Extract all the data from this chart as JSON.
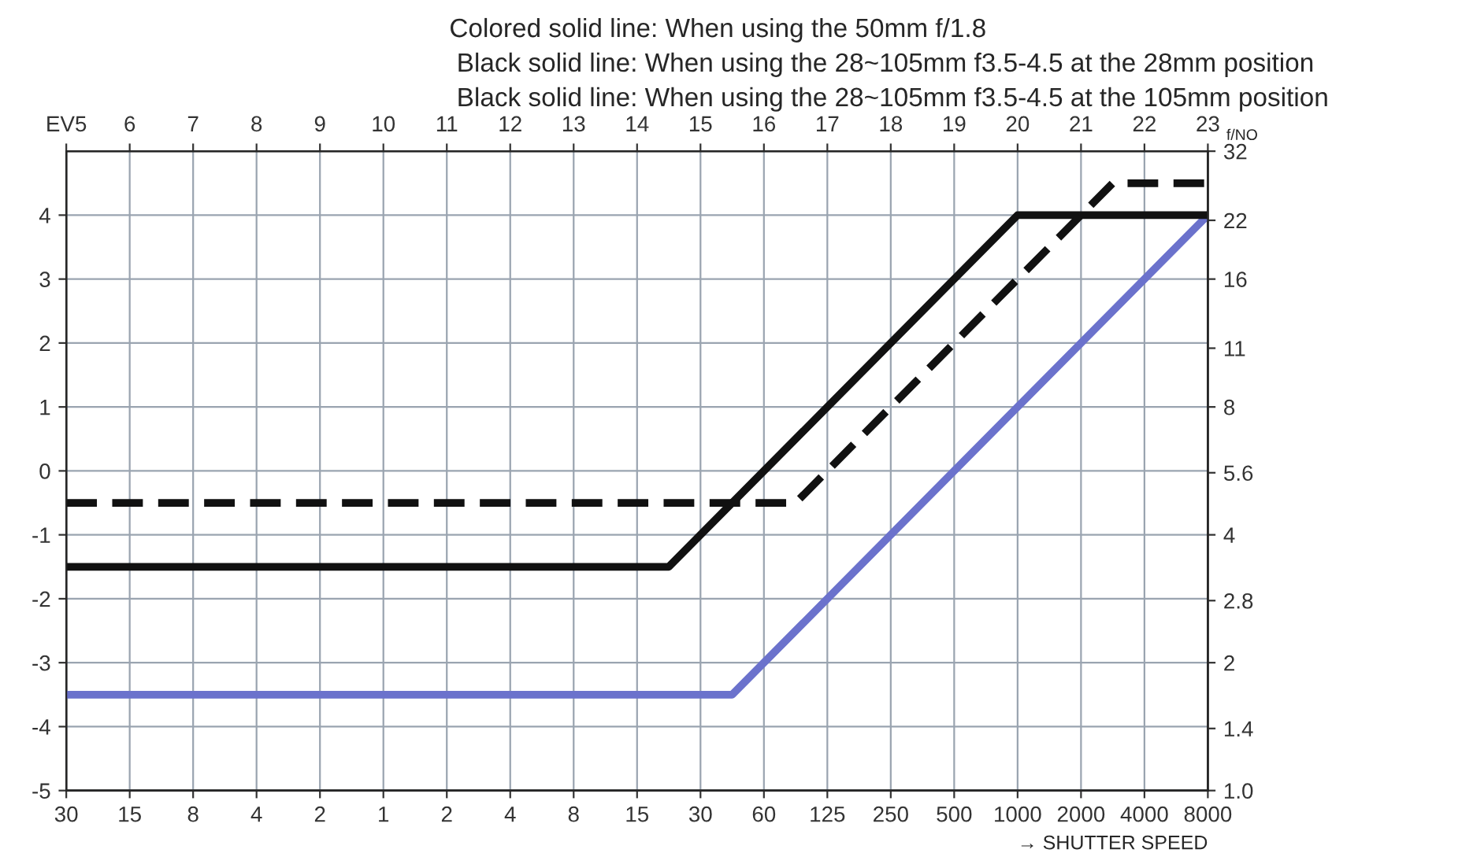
{
  "chart_data": {
    "type": "line",
    "xlabel": "→ SHUTTER SPEED",
    "y2label": "f/NO",
    "annotations": [
      "Colored solid line: When using the 50mm f/1.8",
      "Black solid line: When using the 28~105mm f3.5-4.5 at the 28mm position",
      "Black solid line: When using the 28~105mm f3.5-4.5 at the 105mm position"
    ],
    "categories": [
      "30",
      "15",
      "8",
      "4",
      "2",
      "1",
      "2",
      "4",
      "8",
      "15",
      "30",
      "60",
      "125",
      "250",
      "500",
      "1000",
      "2000",
      "4000",
      "8000"
    ],
    "x2lim": [
      5,
      23
    ],
    "x2ticks": [
      {
        "value": 5,
        "label": "EV5"
      },
      6,
      7,
      8,
      9,
      10,
      11,
      12,
      13,
      14,
      15,
      16,
      17,
      18,
      19,
      20,
      21,
      22,
      23
    ],
    "ylim": [
      -5,
      5
    ],
    "yticks": [
      -5,
      -4,
      -3,
      -2,
      -1,
      0,
      1,
      2,
      3,
      4
    ],
    "y2lim": [
      1,
      32
    ],
    "y2ticks": [
      {
        "value": 1,
        "label": "1.0"
      },
      1.4,
      2,
      2.8,
      4,
      5.6,
      8,
      11,
      16,
      22,
      32
    ],
    "log": "y2",
    "grid": true,
    "series": [
      {
        "color": "#6b72cc",
        "line_style": "solid",
        "axis": "x2",
        "x": [
          5,
          15.5,
          23
        ],
        "values": [
          -3.5,
          -3.5,
          4
        ]
      },
      {
        "color": "#111111",
        "line_style": "solid",
        "axis": "x2",
        "x": [
          5,
          14.5,
          20,
          23
        ],
        "values": [
          -1.5,
          -1.5,
          4,
          4
        ]
      },
      {
        "color": "#111111",
        "line_style": "dashed",
        "axis": "x2",
        "x": [
          5,
          16.5,
          21.5,
          23
        ],
        "values": [
          -0.5,
          -0.5,
          4.5,
          4.5
        ]
      }
    ]
  }
}
